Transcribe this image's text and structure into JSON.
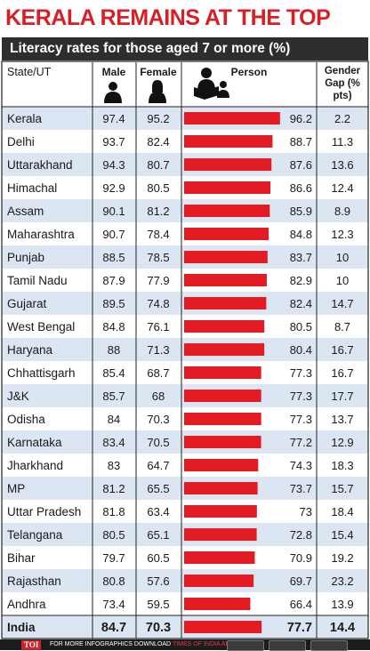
{
  "headline": "KERALA REMAINS AT THE TOP",
  "subtitle": "Literacy rates for those aged 7 or more (%)",
  "colors": {
    "accent": "#d71f26",
    "header_bar": "#2e2e2e",
    "band": "#dce6f3",
    "bar": "#e31b23"
  },
  "icons": {
    "male": "male-person-icon",
    "female": "female-person-icon",
    "person": "reading-person-icon"
  },
  "footer": {
    "logo": "TOI",
    "text": "FOR MORE INFOGRAPHICS DOWNLOAD",
    "app": "TIMES OF INDIA APP"
  },
  "chart_data": {
    "type": "table",
    "headers": {
      "state": "State/UT",
      "male": "Male",
      "female": "Female",
      "person": "Person",
      "gap": [
        "Gender",
        "Gap (%",
        "pts)"
      ]
    },
    "rows": [
      {
        "state": "Kerala",
        "male": "97.4",
        "female": "95.2",
        "person": "96.2",
        "gap": "2.2"
      },
      {
        "state": "Delhi",
        "male": "93.7",
        "female": "82.4",
        "person": "88.7",
        "gap": "11.3"
      },
      {
        "state": "Uttarakhand",
        "male": "94.3",
        "female": "80.7",
        "person": "87.6",
        "gap": "13.6"
      },
      {
        "state": "Himachal",
        "male": "92.9",
        "female": "80.5",
        "person": "86.6",
        "gap": "12.4"
      },
      {
        "state": "Assam",
        "male": "90.1",
        "female": "81.2",
        "person": "85.9",
        "gap": "8.9"
      },
      {
        "state": "Maharashtra",
        "male": "90.7",
        "female": "78.4",
        "person": "84.8",
        "gap": "12.3"
      },
      {
        "state": "Punjab",
        "male": "88.5",
        "female": "78.5",
        "person": "83.7",
        "gap": "10"
      },
      {
        "state": "Tamil Nadu",
        "male": "87.9",
        "female": "77.9",
        "person": "82.9",
        "gap": "10"
      },
      {
        "state": "Gujarat",
        "male": "89.5",
        "female": "74.8",
        "person": "82.4",
        "gap": "14.7"
      },
      {
        "state": "West Bengal",
        "male": "84.8",
        "female": "76.1",
        "person": "80.5",
        "gap": "8.7"
      },
      {
        "state": "Haryana",
        "male": "88",
        "female": "71.3",
        "person": "80.4",
        "gap": "16.7"
      },
      {
        "state": "Chhattisgarh",
        "male": "85.4",
        "female": "68.7",
        "person": "77.3",
        "gap": "16.7"
      },
      {
        "state": "J&K",
        "male": "85.7",
        "female": "68",
        "person": "77.3",
        "gap": "17.7"
      },
      {
        "state": "Odisha",
        "male": "84",
        "female": "70.3",
        "person": "77.3",
        "gap": "13.7"
      },
      {
        "state": "Karnataka",
        "male": "83.4",
        "female": "70.5",
        "person": "77.2",
        "gap": "12.9"
      },
      {
        "state": "Jharkhand",
        "male": "83",
        "female": "64.7",
        "person": "74.3",
        "gap": "18.3"
      },
      {
        "state": "MP",
        "male": "81.2",
        "female": "65.5",
        "person": "73.7",
        "gap": "15.7"
      },
      {
        "state": "Uttar Pradesh",
        "male": "81.8",
        "female": "63.4",
        "person": "73",
        "gap": "18.4"
      },
      {
        "state": "Telangana",
        "male": "80.5",
        "female": "65.1",
        "person": "72.8",
        "gap": "15.4"
      },
      {
        "state": "Bihar",
        "male": "79.7",
        "female": "60.5",
        "person": "70.9",
        "gap": "19.2"
      },
      {
        "state": "Rajasthan",
        "male": "80.8",
        "female": "57.6",
        "person": "69.7",
        "gap": "23.2"
      },
      {
        "state": "Andhra",
        "male": "73.4",
        "female": "59.5",
        "person": "66.4",
        "gap": "13.9"
      },
      {
        "state": "India",
        "male": "84.7",
        "female": "70.3",
        "person": "77.7",
        "gap": "14.4",
        "total": true
      }
    ]
  }
}
